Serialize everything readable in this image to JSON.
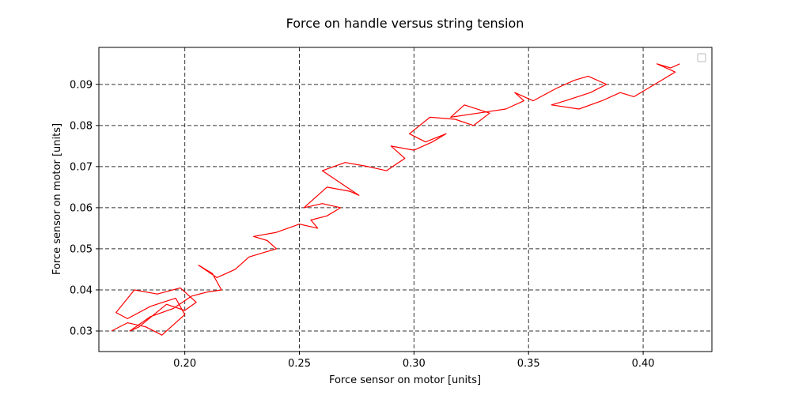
{
  "chart_data": {
    "type": "line",
    "title": "Force on handle versus string tension",
    "xlabel": "Force sensor on motor [units]",
    "ylabel": "Force sensor on motor [units]",
    "xlim": [
      0.1625,
      0.43
    ],
    "ylim": [
      0.025,
      0.099
    ],
    "xticks": [
      0.2,
      0.25,
      0.3,
      0.35,
      0.4
    ],
    "xtick_labels": [
      "0.20",
      "0.25",
      "0.30",
      "0.35",
      "0.40"
    ],
    "yticks": [
      0.03,
      0.04,
      0.05,
      0.06,
      0.07,
      0.08,
      0.09
    ],
    "ytick_labels": [
      "0.03",
      "0.04",
      "0.05",
      "0.06",
      "0.07",
      "0.08",
      "0.09"
    ],
    "grid": true,
    "legend": "top-right (empty)",
    "series": [
      {
        "color": "#ff0000",
        "x": [
          0.168,
          0.175,
          0.183,
          0.19,
          0.2,
          0.196,
          0.185,
          0.175,
          0.17,
          0.178,
          0.188,
          0.198,
          0.205,
          0.2,
          0.192,
          0.18,
          0.176,
          0.185,
          0.195,
          0.203,
          0.21,
          0.216,
          0.212,
          0.206,
          0.214,
          0.222,
          0.228,
          0.234,
          0.24,
          0.236,
          0.23,
          0.24,
          0.25,
          0.258,
          0.255,
          0.262,
          0.268,
          0.26,
          0.252,
          0.262,
          0.272,
          0.276,
          0.268,
          0.26,
          0.27,
          0.28,
          0.288,
          0.296,
          0.29,
          0.3,
          0.308,
          0.314,
          0.305,
          0.298,
          0.307,
          0.318,
          0.326,
          0.333,
          0.322,
          0.316,
          0.328,
          0.34,
          0.348,
          0.344,
          0.352,
          0.362,
          0.37,
          0.376,
          0.384,
          0.377,
          0.366,
          0.36,
          0.372,
          0.382,
          0.39,
          0.396,
          0.402,
          0.408,
          0.414,
          0.406,
          0.412,
          0.416
        ],
        "y": [
          0.03,
          0.032,
          0.031,
          0.029,
          0.034,
          0.038,
          0.036,
          0.033,
          0.0345,
          0.04,
          0.039,
          0.0405,
          0.037,
          0.035,
          0.0365,
          0.031,
          0.03,
          0.0335,
          0.0355,
          0.0385,
          0.0395,
          0.04,
          0.044,
          0.046,
          0.043,
          0.045,
          0.048,
          0.049,
          0.05,
          0.052,
          0.053,
          0.054,
          0.056,
          0.055,
          0.057,
          0.058,
          0.06,
          0.061,
          0.06,
          0.065,
          0.064,
          0.063,
          0.066,
          0.069,
          0.071,
          0.07,
          0.069,
          0.072,
          0.075,
          0.074,
          0.076,
          0.078,
          0.076,
          0.078,
          0.082,
          0.0815,
          0.08,
          0.083,
          0.085,
          0.082,
          0.083,
          0.084,
          0.086,
          0.088,
          0.086,
          0.089,
          0.091,
          0.092,
          0.09,
          0.088,
          0.086,
          0.085,
          0.084,
          0.086,
          0.088,
          0.087,
          0.089,
          0.091,
          0.093,
          0.095,
          0.094,
          0.095
        ]
      }
    ]
  }
}
